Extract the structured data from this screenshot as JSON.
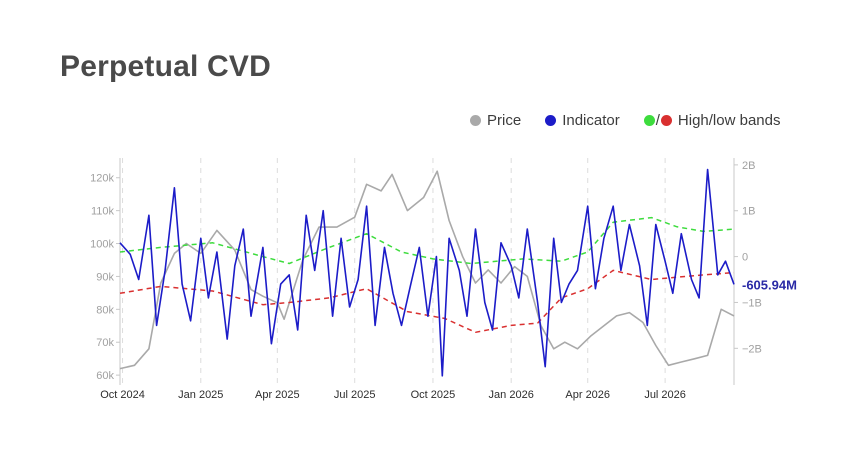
{
  "title": "Perpetual CVD",
  "legend": {
    "price": "Price",
    "indicator": "Indicator",
    "bands_sep": "/",
    "bands": "High/low bands"
  },
  "colors": {
    "price": "#a9a9a9",
    "indicator": "#1c1cc8",
    "band_high": "#3ddc3d",
    "band_low": "#d93030",
    "last_value": "#2a2aa6"
  },
  "chart_data": {
    "type": "line",
    "x_ticks": [
      "Oct 2024",
      "Jan 2025",
      "Apr 2025",
      "Jul 2025",
      "Oct 2025",
      "Jan 2026",
      "Apr 2026",
      "Jul 2026"
    ],
    "left_axis": {
      "ticks": [
        "60k",
        "70k",
        "80k",
        "90k",
        "100k",
        "110k",
        "120k"
      ],
      "ylim": [
        57000,
        126000
      ]
    },
    "right_axis": {
      "ticks": [
        "-2B",
        "-1B",
        "0",
        "1B",
        "2B"
      ],
      "ylim": [
        -2800000000,
        2150000000
      ]
    },
    "last_value_label": "-605.94M",
    "grid": "vertical dashed at x ticks",
    "series": [
      {
        "name": "Price",
        "axis": "left",
        "x": [
          "2024-09-28",
          "2024-10-15",
          "2024-11-01",
          "2024-11-15",
          "2024-12-01",
          "2024-12-15",
          "2025-01-01",
          "2025-01-20",
          "2025-02-10",
          "2025-03-01",
          "2025-03-15",
          "2025-04-01",
          "2025-04-09",
          "2025-05-01",
          "2025-05-20",
          "2025-06-10",
          "2025-07-01",
          "2025-07-15",
          "2025-08-01",
          "2025-08-14",
          "2025-09-01",
          "2025-09-20",
          "2025-10-06",
          "2025-10-20",
          "2025-11-05",
          "2025-11-20",
          "2025-12-05",
          "2025-12-20",
          "2026-01-05",
          "2026-01-20",
          "2026-02-05",
          "2026-02-20",
          "2026-03-05",
          "2026-03-20",
          "2026-04-05",
          "2026-04-20",
          "2026-05-05",
          "2026-05-20",
          "2026-06-05",
          "2026-06-20",
          "2026-07-05",
          "2026-07-20",
          "2026-08-05",
          "2026-08-20",
          "2026-09-05",
          "2026-09-20"
        ],
        "values": [
          62000,
          63000,
          68000,
          88000,
          97000,
          100000,
          97000,
          104000,
          98000,
          86000,
          84000,
          82000,
          77000,
          95000,
          105000,
          105000,
          108000,
          118000,
          116000,
          121000,
          110000,
          114000,
          122000,
          107000,
          96000,
          88000,
          92000,
          88000,
          93000,
          90000,
          75000,
          68000,
          70000,
          68000,
          72000,
          75000,
          78000,
          79000,
          76000,
          69000,
          63000,
          64000,
          65000,
          66000,
          80000,
          78000
        ]
      },
      {
        "name": "Indicator",
        "axis": "right",
        "x": [
          "2024-09-28",
          "2024-10-10",
          "2024-10-20",
          "2024-11-01",
          "2024-11-10",
          "2024-11-20",
          "2024-12-01",
          "2024-12-10",
          "2024-12-20",
          "2025-01-01",
          "2025-01-10",
          "2025-01-20",
          "2025-02-01",
          "2025-02-10",
          "2025-02-20",
          "2025-03-01",
          "2025-03-15",
          "2025-03-25",
          "2025-04-05",
          "2025-04-15",
          "2025-04-25",
          "2025-05-05",
          "2025-05-15",
          "2025-05-25",
          "2025-06-05",
          "2025-06-15",
          "2025-06-25",
          "2025-07-05",
          "2025-07-15",
          "2025-07-25",
          "2025-08-05",
          "2025-08-15",
          "2025-08-25",
          "2025-09-05",
          "2025-09-15",
          "2025-09-25",
          "2025-10-05",
          "2025-10-12",
          "2025-10-20",
          "2025-11-01",
          "2025-11-10",
          "2025-11-20",
          "2025-12-01",
          "2025-12-10",
          "2025-12-20",
          "2026-01-01",
          "2026-01-10",
          "2026-01-20",
          "2026-02-01",
          "2026-02-10",
          "2026-02-20",
          "2026-03-01",
          "2026-03-10",
          "2026-03-20",
          "2026-04-01",
          "2026-04-10",
          "2026-04-20",
          "2026-05-01",
          "2026-05-10",
          "2026-05-20",
          "2026-06-01",
          "2026-06-10",
          "2026-06-20",
          "2026-07-01",
          "2026-07-10",
          "2026-07-20",
          "2026-08-01",
          "2026-08-10",
          "2026-08-20",
          "2026-09-01",
          "2026-09-10",
          "2026-09-20"
        ],
        "values": [
          300000000,
          50000000,
          -500000000,
          900000000,
          -1500000000,
          -300000000,
          1500000000,
          -600000000,
          -1400000000,
          400000000,
          -900000000,
          100000000,
          -1800000000,
          -200000000,
          600000000,
          -1300000000,
          200000000,
          -1900000000,
          -600000000,
          -400000000,
          -1600000000,
          900000000,
          -300000000,
          1000000000,
          -1300000000,
          400000000,
          -1100000000,
          -500000000,
          1100000000,
          -1500000000,
          200000000,
          -800000000,
          -1500000000,
          -600000000,
          200000000,
          -1300000000,
          0,
          -2600000000,
          400000000,
          -300000000,
          -1300000000,
          600000000,
          -1000000000,
          -1600000000,
          300000000,
          -200000000,
          -900000000,
          600000000,
          -1000000000,
          -2400000000,
          400000000,
          -1000000000,
          -600000000,
          -300000000,
          1100000000,
          -700000000,
          400000000,
          1100000000,
          -300000000,
          700000000,
          -200000000,
          -1500000000,
          700000000,
          -100000000,
          -800000000,
          500000000,
          -500000000,
          -900000000,
          1900000000,
          -400000000,
          -100000000,
          -605940000
        ]
      },
      {
        "name": "High band",
        "axis": "right",
        "x": [
          "2024-09-28",
          "2024-11-15",
          "2025-01-15",
          "2025-03-15",
          "2025-04-15",
          "2025-06-01",
          "2025-07-15",
          "2025-08-25",
          "2025-10-01",
          "2025-11-15",
          "2026-01-15",
          "2026-03-01",
          "2026-04-01",
          "2026-05-01",
          "2026-06-15",
          "2026-07-15",
          "2026-08-15",
          "2026-09-20"
        ],
        "values": [
          100000000,
          200000000,
          300000000,
          0,
          -150000000,
          200000000,
          500000000,
          100000000,
          -50000000,
          -150000000,
          -50000000,
          -100000000,
          100000000,
          750000000,
          850000000,
          650000000,
          550000000,
          600000000
        ]
      },
      {
        "name": "Low band",
        "axis": "right",
        "x": [
          "2024-09-28",
          "2024-11-15",
          "2025-01-15",
          "2025-03-15",
          "2025-04-15",
          "2025-06-01",
          "2025-07-15",
          "2025-09-01",
          "2025-10-15",
          "2025-11-20",
          "2026-01-01",
          "2026-02-01",
          "2026-03-01",
          "2026-04-01",
          "2026-05-01",
          "2026-06-15",
          "2026-07-15",
          "2026-08-15",
          "2026-09-20"
        ],
        "values": [
          -800000000,
          -650000000,
          -750000000,
          -1050000000,
          -1000000000,
          -900000000,
          -700000000,
          -1200000000,
          -1350000000,
          -1650000000,
          -1500000000,
          -1450000000,
          -900000000,
          -700000000,
          -300000000,
          -500000000,
          -450000000,
          -400000000,
          -350000000
        ]
      }
    ]
  }
}
